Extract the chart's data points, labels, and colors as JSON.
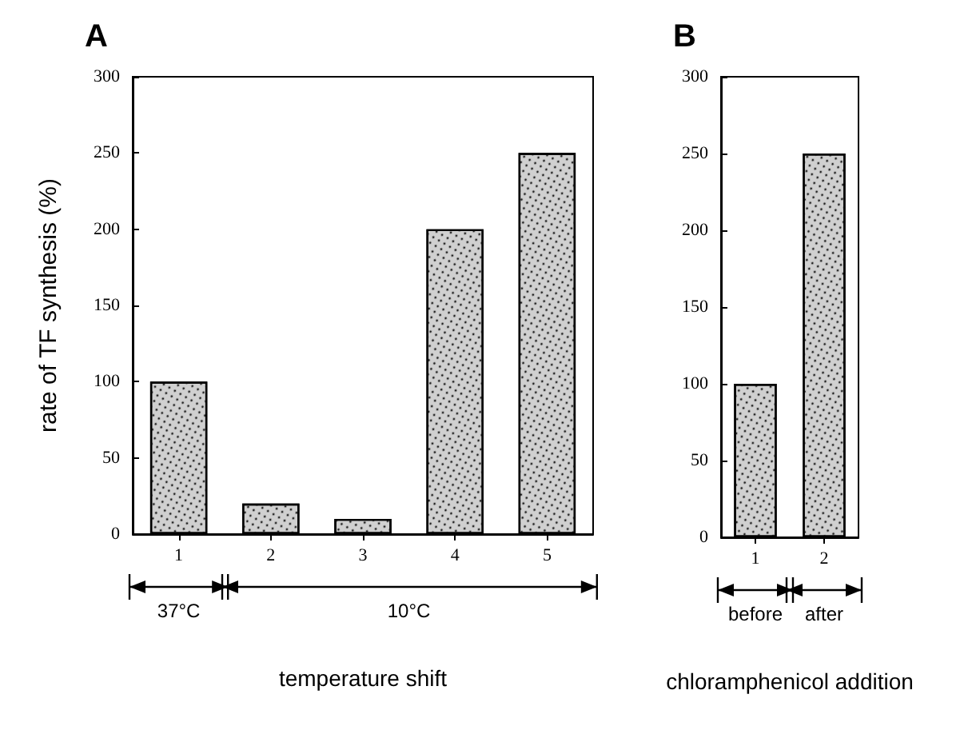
{
  "chart_data": [
    {
      "type": "bar",
      "title": "A",
      "ylabel": "rate of TF synthesis (%)",
      "xlabel": "temperature shift",
      "categories": [
        "1",
        "2",
        "3",
        "4",
        "5"
      ],
      "values": [
        100,
        20,
        10,
        200,
        250
      ],
      "color": "#d0d0d0",
      "ylim": [
        0,
        300
      ],
      "yticks": [
        0,
        50,
        100,
        150,
        200,
        250,
        300
      ],
      "grid": false,
      "annotations": [
        "37°C",
        "10°C"
      ]
    },
    {
      "type": "bar",
      "title": "B",
      "xlabel": "chloramphenicol addition",
      "categories": [
        "1",
        "2"
      ],
      "values": [
        100,
        250
      ],
      "color": "#d0d0d0",
      "ylim": [
        0,
        300
      ],
      "yticks": [
        0,
        50,
        100,
        150,
        200,
        250,
        300
      ],
      "grid": false,
      "annotations": [
        "before",
        "after"
      ]
    }
  ]
}
